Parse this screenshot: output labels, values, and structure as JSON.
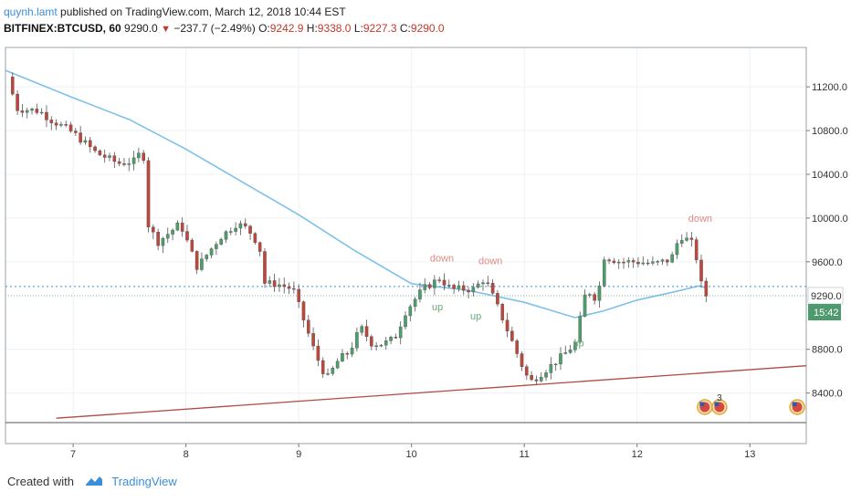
{
  "header": {
    "author": "quynh.lamt",
    "published_text": "published on TradingView.com, March 12, 2018 10:44 EST",
    "symbol": "BITFINEX:BTCUSD, 60",
    "last": "9290.0",
    "change": "−237.7 (−2.49%)",
    "o_label": "O:",
    "o_value": "9242.9",
    "h_label": "H:",
    "h_value": "9338.0",
    "l_label": "L:",
    "l_value": "9227.3",
    "c_label": "C:",
    "c_value": "9290.0"
  },
  "footer": {
    "created_with": "Created with",
    "brand": "TradingView"
  },
  "colors": {
    "up": "#4a9f6a",
    "down": "#c0463c",
    "ma": "#7ec0ea",
    "trend": "#b24a44",
    "grid": "#eef0f3",
    "label_bg": "#4e9a6c"
  },
  "chart_data": {
    "type": "candlestick",
    "y_ticks": [
      "11200.0",
      "10800.0",
      "10400.0",
      "10000.0",
      "9600.0",
      "8800.0",
      "8400.0"
    ],
    "x_ticks": [
      {
        "label": "7",
        "x": 7.0
      },
      {
        "label": "8",
        "x": 8.0
      },
      {
        "label": "9",
        "x": 9.0
      },
      {
        "label": "10",
        "x": 10.0
      },
      {
        "label": "11",
        "x": 11.0
      },
      {
        "label": "12",
        "x": 12.0
      },
      {
        "label": "13",
        "x": 13.0
      }
    ],
    "ylim": [
      8130,
      11560
    ],
    "xlim": [
      6.4,
      13.5
    ],
    "price_label": "9290.0",
    "countdown_label": "15:42",
    "dotted_price": 9375,
    "current_price": 9290,
    "trendline": [
      {
        "x": 6.85,
        "y": 8170
      },
      {
        "x": 13.5,
        "y": 8650
      }
    ],
    "ma": [
      {
        "x": 6.4,
        "y": 11350
      },
      {
        "x": 7.0,
        "y": 11100
      },
      {
        "x": 7.5,
        "y": 10900
      },
      {
        "x": 8.0,
        "y": 10630
      },
      {
        "x": 8.5,
        "y": 10330
      },
      {
        "x": 9.0,
        "y": 10030
      },
      {
        "x": 9.5,
        "y": 9700
      },
      {
        "x": 10.0,
        "y": 9400
      },
      {
        "x": 10.5,
        "y": 9340
      },
      {
        "x": 11.0,
        "y": 9230
      },
      {
        "x": 11.45,
        "y": 9090
      },
      {
        "x": 11.7,
        "y": 9150
      },
      {
        "x": 12.0,
        "y": 9250
      },
      {
        "x": 12.35,
        "y": 9330
      },
      {
        "x": 12.55,
        "y": 9380
      },
      {
        "x": 12.62,
        "y": 9360
      }
    ],
    "anchors": [
      {
        "x": 6.42,
        "y": 11290
      },
      {
        "x": 6.5,
        "y": 11000
      },
      {
        "x": 6.7,
        "y": 10980
      },
      {
        "x": 6.8,
        "y": 10900
      },
      {
        "x": 7.0,
        "y": 10780
      },
      {
        "x": 7.2,
        "y": 10600
      },
      {
        "x": 7.4,
        "y": 10500
      },
      {
        "x": 7.55,
        "y": 10520
      },
      {
        "x": 7.62,
        "y": 10650
      },
      {
        "x": 7.65,
        "y": 9970
      },
      {
        "x": 7.75,
        "y": 9780
      },
      {
        "x": 7.95,
        "y": 9950
      },
      {
        "x": 8.1,
        "y": 9550
      },
      {
        "x": 8.3,
        "y": 9820
      },
      {
        "x": 8.45,
        "y": 9950
      },
      {
        "x": 8.55,
        "y": 9900
      },
      {
        "x": 8.65,
        "y": 9750
      },
      {
        "x": 8.7,
        "y": 9400
      },
      {
        "x": 8.8,
        "y": 9400
      },
      {
        "x": 8.95,
        "y": 9350
      },
      {
        "x": 9.05,
        "y": 9050
      },
      {
        "x": 9.15,
        "y": 8750
      },
      {
        "x": 9.25,
        "y": 8530
      },
      {
        "x": 9.35,
        "y": 8700
      },
      {
        "x": 9.45,
        "y": 8780
      },
      {
        "x": 9.55,
        "y": 9000
      },
      {
        "x": 9.65,
        "y": 8850
      },
      {
        "x": 9.75,
        "y": 8850
      },
      {
        "x": 9.85,
        "y": 8900
      },
      {
        "x": 9.95,
        "y": 9150
      },
      {
        "x": 10.1,
        "y": 9350
      },
      {
        "x": 10.25,
        "y": 9450
      },
      {
        "x": 10.35,
        "y": 9350
      },
      {
        "x": 10.55,
        "y": 9350
      },
      {
        "x": 10.65,
        "y": 9450
      },
      {
        "x": 10.8,
        "y": 9100
      },
      {
        "x": 10.9,
        "y": 8850
      },
      {
        "x": 11.0,
        "y": 8600
      },
      {
        "x": 11.05,
        "y": 8500
      },
      {
        "x": 11.2,
        "y": 8620
      },
      {
        "x": 11.35,
        "y": 8750
      },
      {
        "x": 11.45,
        "y": 8850
      },
      {
        "x": 11.55,
        "y": 9350
      },
      {
        "x": 11.65,
        "y": 9250
      },
      {
        "x": 11.7,
        "y": 9650
      },
      {
        "x": 11.85,
        "y": 9600
      },
      {
        "x": 12.0,
        "y": 9600
      },
      {
        "x": 12.15,
        "y": 9580
      },
      {
        "x": 12.3,
        "y": 9620
      },
      {
        "x": 12.38,
        "y": 9840
      },
      {
        "x": 12.48,
        "y": 9780
      },
      {
        "x": 12.55,
        "y": 9560
      },
      {
        "x": 12.58,
        "y": 9300
      },
      {
        "x": 12.62,
        "y": 9290
      }
    ],
    "annotations": [
      {
        "text": "down",
        "kind": "down",
        "x": 10.27,
        "y": 9605
      },
      {
        "text": "down",
        "kind": "down",
        "x": 10.7,
        "y": 9580
      },
      {
        "text": "down",
        "kind": "down",
        "x": 12.56,
        "y": 9965
      },
      {
        "text": "up",
        "kind": "up",
        "x": 10.23,
        "y": 9155
      },
      {
        "text": "up",
        "kind": "up",
        "x": 10.57,
        "y": 9075
      },
      {
        "text": "up",
        "kind": "up",
        "x": 11.48,
        "y": 8825
      }
    ],
    "events": [
      {
        "x": 12.6,
        "label": ""
      },
      {
        "x": 12.73,
        "label": "3"
      },
      {
        "x": 13.42,
        "label": ""
      }
    ]
  }
}
